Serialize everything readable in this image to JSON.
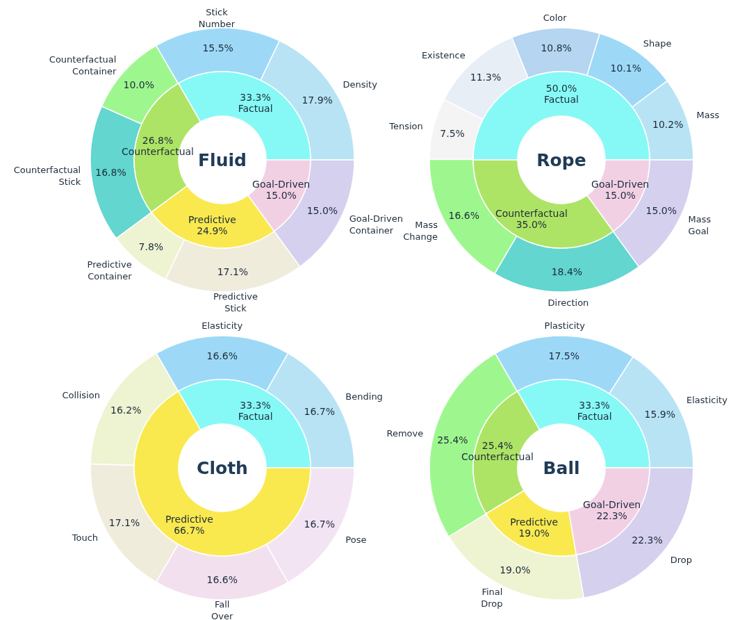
{
  "chart_data": [
    {
      "type": "donut",
      "title": "Fluid",
      "categories": [
        "Factual",
        "Counterfactual",
        "Predictive",
        "Goal-Driven"
      ],
      "values": [
        33.3,
        26.8,
        24.9,
        15.0
      ],
      "value_labels": [
        "33.3%",
        "26.8%",
        "24.9%",
        "15.0%"
      ],
      "colors": [
        "#86f9f6",
        "#aee465",
        "#f9e94e",
        "#f2d0e4"
      ]
    },
    {
      "type": "donut",
      "categories": [
        "Density",
        "Stick Number",
        "Counterfactual Container",
        "Counterfactual Stick",
        "Predictive Container",
        "Predictive Stick",
        "Goal-Driven Container"
      ],
      "values": [
        17.9,
        15.5,
        10.0,
        16.8,
        7.8,
        17.1,
        15.0
      ],
      "value_labels": [
        "17.9%",
        "15.5%",
        "10.0%",
        "16.8%",
        "7.8%",
        "17.1%",
        "15.0%"
      ],
      "colors": [
        "#b8e3f5",
        "#9dd9f7",
        "#9ef78e",
        "#62d6cf",
        "#eef3d2",
        "#f0ecdc",
        "#d5d0ee"
      ]
    },
    {
      "type": "donut",
      "title": "Rope",
      "categories": [
        "Factual",
        "Counterfactual",
        "Goal-Driven"
      ],
      "values": [
        50.0,
        35.0,
        15.0
      ],
      "value_labels": [
        "50.0%",
        "35.0%",
        "15.0%"
      ],
      "colors": [
        "#86f9f6",
        "#aee465",
        "#f2d0e4"
      ]
    },
    {
      "type": "donut",
      "categories": [
        "Mass",
        "Shape",
        "Color",
        "Existence",
        "Tension",
        "Mass Change",
        "Direction",
        "Mass Goal"
      ],
      "values": [
        10.2,
        10.1,
        10.8,
        11.3,
        7.5,
        16.6,
        18.4,
        15.0
      ],
      "value_labels": [
        "10.2%",
        "10.1%",
        "10.8%",
        "11.3%",
        "7.5%",
        "16.6%",
        "18.4%",
        "15.0%"
      ],
      "colors": [
        "#b8e3f5",
        "#9dd9f7",
        "#b5d5f0",
        "#e8eef5",
        "#f4f4f4",
        "#9ef78e",
        "#62d6cf",
        "#d5d0ee"
      ]
    },
    {
      "type": "donut",
      "title": "Cloth",
      "categories": [
        "Factual",
        "Predictive"
      ],
      "values": [
        33.3,
        66.7
      ],
      "value_labels": [
        "33.3%",
        "66.7%"
      ],
      "colors": [
        "#86f9f6",
        "#f9e94e"
      ]
    },
    {
      "type": "donut",
      "categories": [
        "Bending",
        "Elasticity",
        "Collision",
        "Touch",
        "Fall Over",
        "Pose"
      ],
      "values": [
        16.7,
        16.6,
        16.2,
        17.1,
        16.6,
        16.7
      ],
      "value_labels": [
        "16.7%",
        "16.6%",
        "16.2%",
        "17.1%",
        "16.6%",
        "16.7%"
      ],
      "colors": [
        "#b8e3f5",
        "#9dd9f7",
        "#eef3d2",
        "#f0ecdc",
        "#f2e0ee",
        "#f3e4f3"
      ]
    },
    {
      "type": "donut",
      "title": "Ball",
      "categories": [
        "Factual",
        "Counterfactual",
        "Predictive",
        "Goal-Driven"
      ],
      "values": [
        33.3,
        25.4,
        19.0,
        22.3
      ],
      "value_labels": [
        "33.3%",
        "25.4%",
        "19.0%",
        "22.3%"
      ],
      "colors": [
        "#86f9f6",
        "#aee465",
        "#f9e94e",
        "#f2d0e4"
      ]
    },
    {
      "type": "donut",
      "categories": [
        "Elasticity",
        "Plasticity",
        "Remove",
        "Final Drop",
        "Drop"
      ],
      "values": [
        15.9,
        17.5,
        25.4,
        19.0,
        22.3
      ],
      "value_labels": [
        "15.9%",
        "17.5%",
        "25.4%",
        "19.0%",
        "22.3%"
      ],
      "colors": [
        "#b8e3f5",
        "#9dd9f7",
        "#9ef78e",
        "#eef3d2",
        "#d5d0ee"
      ]
    }
  ]
}
